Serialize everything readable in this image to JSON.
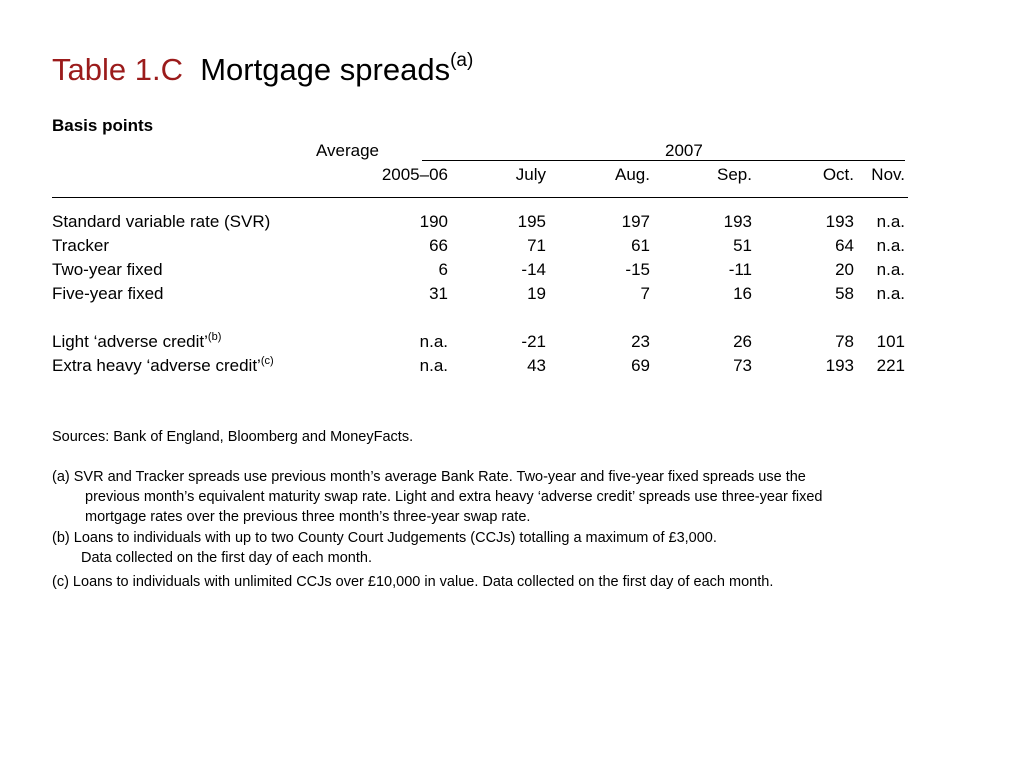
{
  "title": {
    "number": "Table 1.C",
    "text": "Mortgage spreads",
    "note": "(a)",
    "colors": {
      "number": "#9b1b1b",
      "text": "#000000"
    }
  },
  "units": "Basis points",
  "header": {
    "average_label": "Average",
    "year_label": "2007",
    "columns": [
      "2005–06",
      "July",
      "Aug.",
      "Sep.",
      "Oct.",
      "Nov."
    ]
  },
  "rows": [
    {
      "label": "Standard variable rate (SVR)",
      "note": "",
      "values": [
        "190",
        "195",
        "197",
        "193",
        "193",
        "n.a."
      ]
    },
    {
      "label": "Tracker",
      "note": "",
      "values": [
        "66",
        "71",
        "61",
        "51",
        "64",
        "n.a."
      ]
    },
    {
      "label": "Two-year fixed",
      "note": "",
      "values": [
        "6",
        "-14",
        "-15",
        "-11",
        "20",
        "n.a."
      ]
    },
    {
      "label": "Five-year fixed",
      "note": "",
      "values": [
        "31",
        "19",
        "7",
        "16",
        "58",
        "n.a."
      ]
    },
    {
      "label": "Light ‘adverse credit’",
      "note": "(b)",
      "values": [
        "n.a.",
        "-21",
        "23",
        "26",
        "78",
        "101"
      ]
    },
    {
      "label": "Extra heavy ‘adverse credit’",
      "note": "(c)",
      "values": [
        "n.a.",
        "43",
        "69",
        "73",
        "193",
        "221"
      ]
    }
  ],
  "sources": "Sources:  Bank of England, Bloomberg and MoneyFacts.",
  "footnotes": {
    "a": [
      "(a)  SVR and Tracker spreads use previous month’s average Bank Rate.  Two-year and five-year fixed spreads use the",
      "previous month’s equivalent maturity swap rate.  Light and extra heavy ‘adverse credit’ spreads use three-year fixed",
      "mortgage rates over the previous three month’s three-year swap rate."
    ],
    "b": [
      "(b)  Loans to individuals with up to two County Court Judgements (CCJs) totalling a maximum of £3,000.",
      "Data collected on the first day of each month."
    ],
    "c": [
      "(c)  Loans to individuals with unlimited CCJs over £10,000 in value.  Data collected on the first day of each month."
    ]
  }
}
